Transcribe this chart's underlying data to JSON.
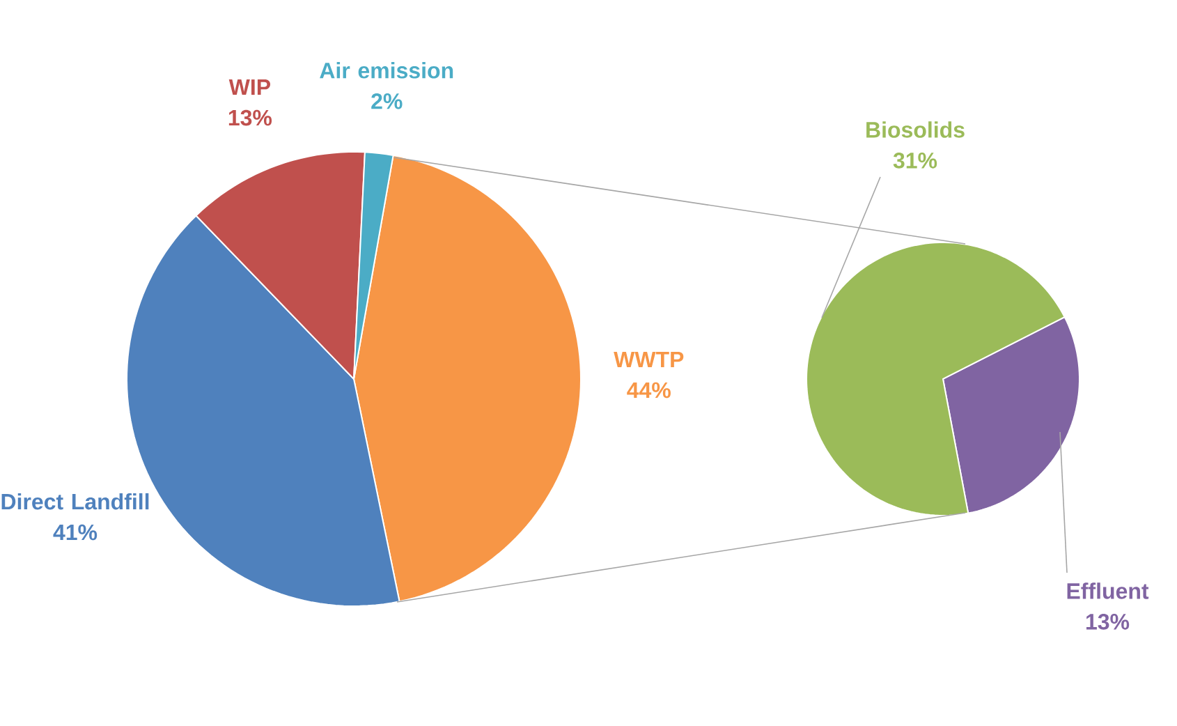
{
  "chart_data": [
    {
      "type": "pie",
      "categories": [
        "WWTP",
        "Direct Landfill",
        "WIP",
        "Air emission"
      ],
      "values": [
        44,
        41,
        13,
        2
      ],
      "colors": [
        "#f79646",
        "#4f81bd",
        "#c0504d",
        "#4bacc6"
      ],
      "value_labels": [
        "44%",
        "41%",
        "13%",
        "2%"
      ]
    },
    {
      "type": "pie",
      "categories": [
        "Effluent",
        "Biosolids"
      ],
      "values": [
        13,
        31
      ],
      "colors": [
        "#8064a2",
        "#9bbb59"
      ],
      "value_labels": [
        "13%",
        "31%"
      ]
    }
  ]
}
